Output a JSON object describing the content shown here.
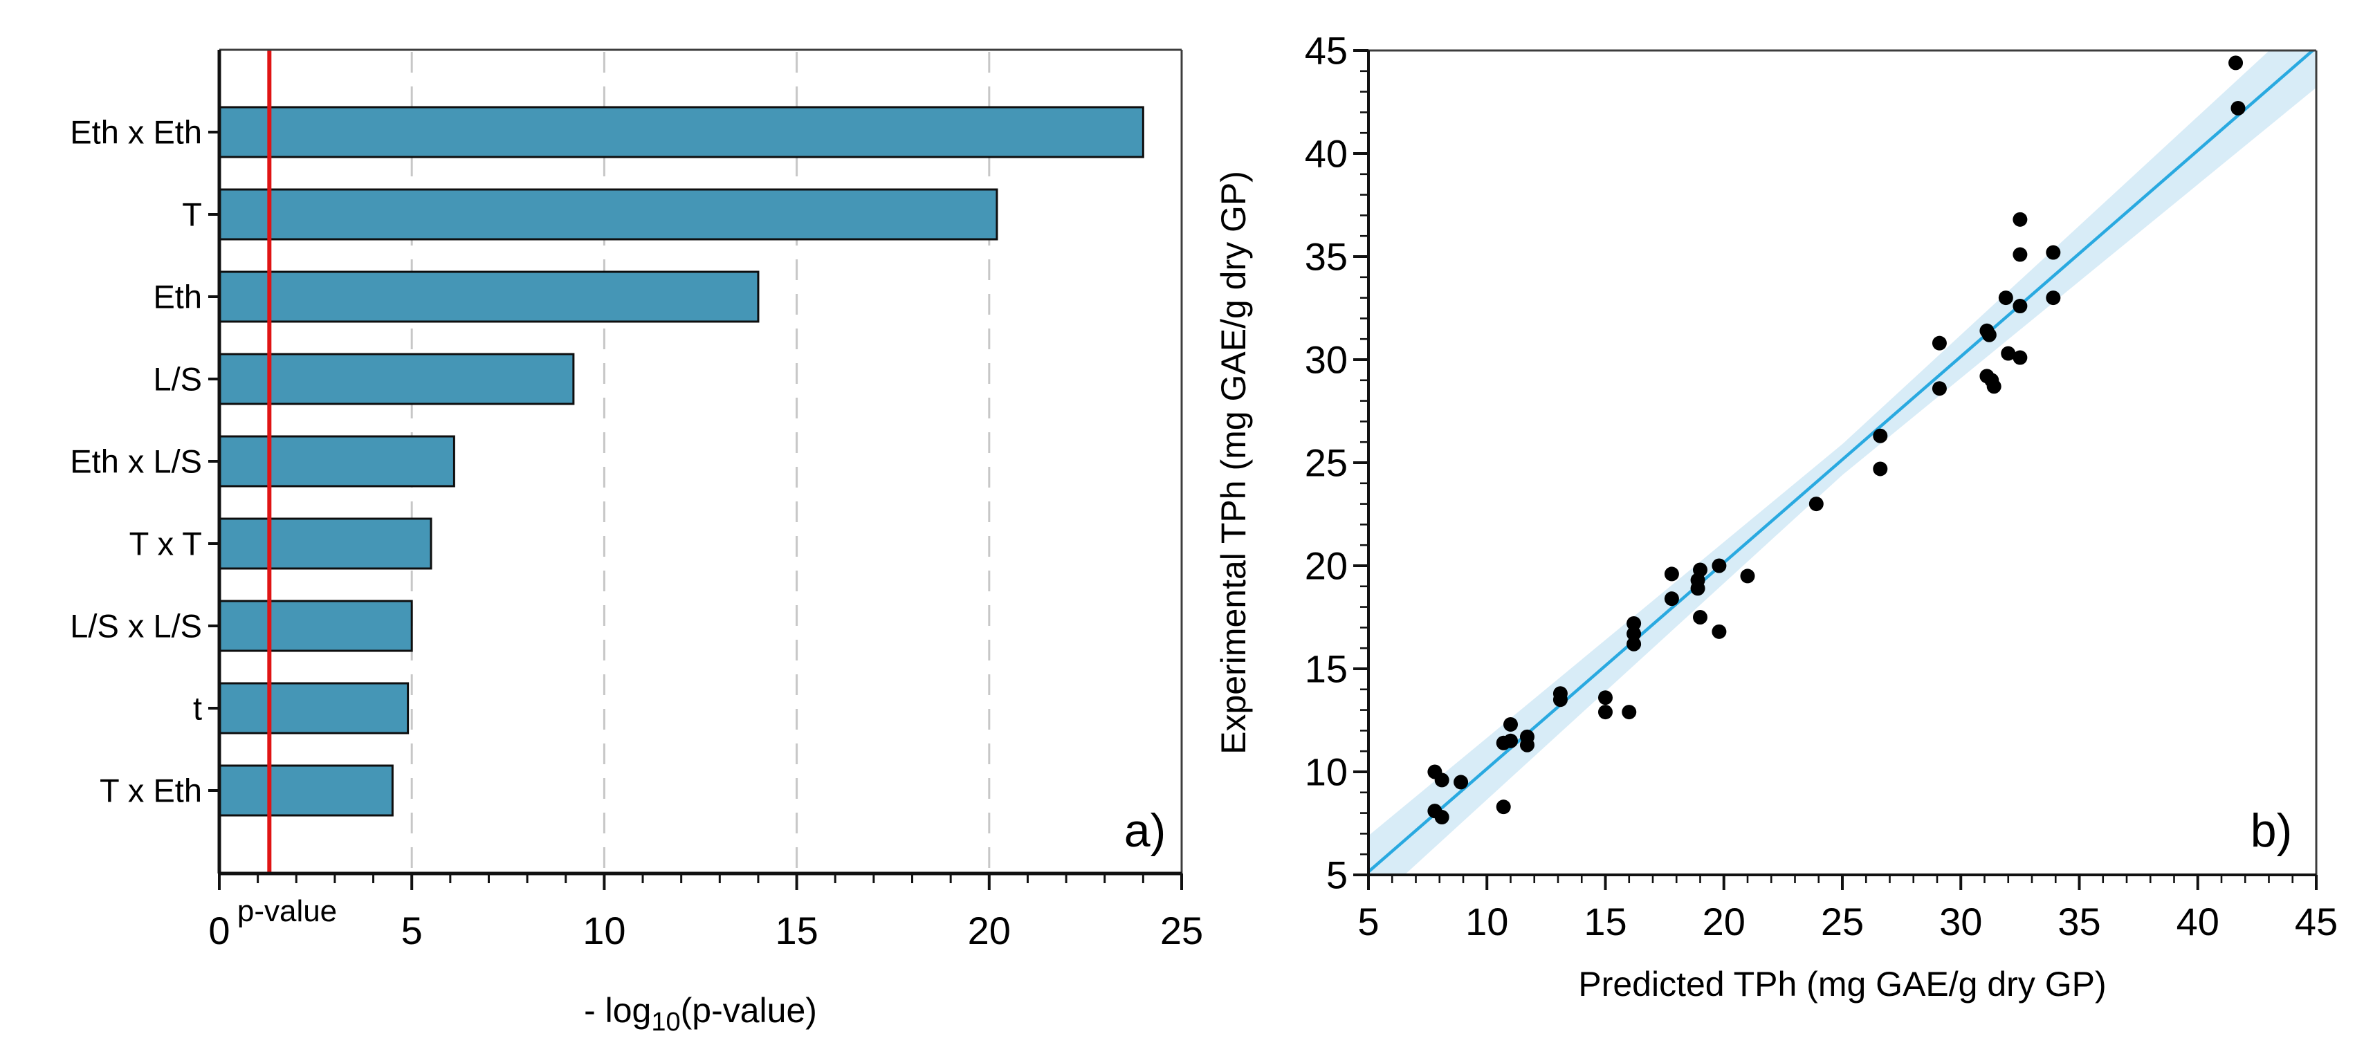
{
  "colors": {
    "background": "#ffffff",
    "bar_fill": "#4596b6",
    "bar_stroke": "#0e0e0e",
    "threshold_red": "#e01414",
    "threshold_label_red": "#e8231f",
    "gridline_gray": "#c7c7c7",
    "spine_black": "#111111",
    "frame_gray": "#3d3d3d",
    "fit_line_blue": "#29a9e0",
    "band_light_blue": "#d8ecf7",
    "dot_black": "#000000"
  },
  "chart_data": [
    {
      "id": "pareto-pvalue-bars",
      "type": "bar",
      "orientation": "horizontal",
      "panel_label": "a)",
      "categories": [
        "Eth x Eth",
        "T",
        "Eth",
        "L/S",
        "Eth x L/S",
        "T x T",
        "L/S x L/S",
        "t",
        "T x Eth"
      ],
      "values": [
        24.0,
        20.2,
        14.0,
        9.2,
        6.1,
        5.5,
        5.0,
        4.9,
        4.5
      ],
      "xlabel_parts": {
        "prefix": "- log",
        "subscript": "10",
        "suffix": "(p-value)"
      },
      "xlim": [
        0,
        25
      ],
      "xticks": [
        0,
        5,
        10,
        15,
        20,
        25
      ],
      "minor_tick_step": 1,
      "gridlines_x": [
        5,
        10,
        15,
        20,
        25
      ],
      "grid_style": "dashed",
      "threshold_line": {
        "value": 1.3,
        "label": "p-value"
      }
    },
    {
      "id": "parity-scatter",
      "type": "scatter",
      "panel_label": "b)",
      "xlabel": "Predicted TPh (mg GAE/g dry GP)",
      "ylabel": "Experimental TPh (mg GAE/g dry GP)",
      "xlim": [
        5,
        45
      ],
      "ylim": [
        5,
        45
      ],
      "xticks": [
        5,
        10,
        15,
        20,
        25,
        30,
        35,
        40,
        45
      ],
      "yticks": [
        5,
        10,
        15,
        20,
        25,
        30,
        35,
        40,
        45
      ],
      "minor_tick_step": 1,
      "grid": false,
      "points": [
        [
          7.8,
          10.0
        ],
        [
          8.1,
          9.6
        ],
        [
          8.9,
          9.5
        ],
        [
          7.8,
          8.1
        ],
        [
          8.1,
          7.8
        ],
        [
          10.7,
          8.3
        ],
        [
          11.0,
          12.3
        ],
        [
          10.7,
          11.4
        ],
        [
          11.0,
          11.5
        ],
        [
          11.7,
          11.7
        ],
        [
          11.7,
          11.3
        ],
        [
          13.1,
          13.8
        ],
        [
          13.1,
          13.5
        ],
        [
          15.0,
          13.6
        ],
        [
          15.0,
          12.9
        ],
        [
          16.0,
          12.9
        ],
        [
          16.2,
          17.2
        ],
        [
          16.2,
          16.7
        ],
        [
          16.2,
          16.2
        ],
        [
          17.8,
          19.6
        ],
        [
          17.8,
          18.4
        ],
        [
          19.0,
          19.8
        ],
        [
          18.9,
          19.3
        ],
        [
          18.9,
          18.9
        ],
        [
          19.8,
          20.0
        ],
        [
          19.0,
          17.5
        ],
        [
          19.8,
          16.8
        ],
        [
          21.0,
          19.5
        ],
        [
          23.9,
          23.0
        ],
        [
          26.6,
          26.3
        ],
        [
          26.6,
          24.7
        ],
        [
          29.1,
          30.8
        ],
        [
          29.1,
          28.6
        ],
        [
          31.1,
          31.4
        ],
        [
          31.2,
          31.2
        ],
        [
          31.9,
          33.0
        ],
        [
          32.5,
          32.6
        ],
        [
          33.9,
          33.0
        ],
        [
          32.0,
          30.3
        ],
        [
          32.5,
          30.1
        ],
        [
          31.1,
          29.2
        ],
        [
          31.3,
          29.0
        ],
        [
          31.4,
          28.7
        ],
        [
          32.5,
          36.8
        ],
        [
          32.5,
          35.1
        ],
        [
          33.9,
          35.2
        ],
        [
          41.6,
          44.4
        ],
        [
          41.7,
          42.2
        ]
      ],
      "fit_line": {
        "x": [
          5,
          45
        ],
        "y": [
          5.15,
          45.15
        ]
      },
      "confidence_band": {
        "x": [
          5,
          25,
          45
        ],
        "upper": [
          6.9,
          25.9,
          47.1
        ],
        "lower": [
          3.4,
          24.4,
          43.2
        ]
      }
    }
  ]
}
